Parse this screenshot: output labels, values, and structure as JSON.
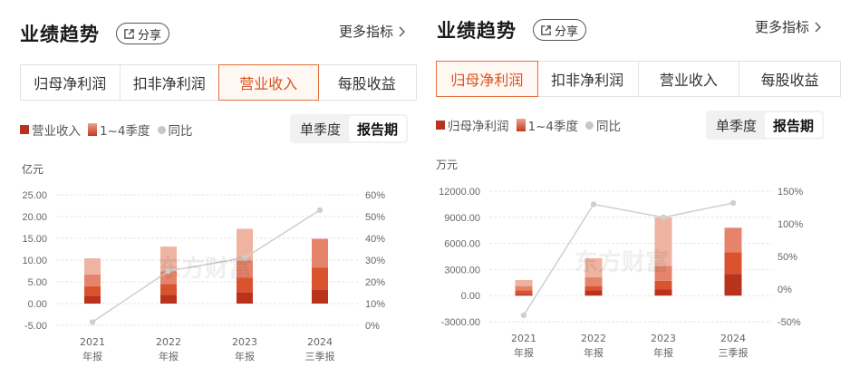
{
  "panels": [
    {
      "title": "业绩趋势",
      "share_label": "分享",
      "more_label": "更多指标",
      "tabs": [
        {
          "label": "归母净利润",
          "active": false
        },
        {
          "label": "扣非净利润",
          "active": false
        },
        {
          "label": "营业收入",
          "active": true
        },
        {
          "label": "每股收益",
          "active": false
        }
      ],
      "legend": {
        "series": "营业收入",
        "quarters": "1~4季度",
        "yoy": "同比"
      },
      "period_buttons": [
        {
          "label": "单季度",
          "active": false
        },
        {
          "label": "报告期",
          "active": true
        }
      ],
      "unit": "亿元",
      "watermark": "东方财富"
    },
    {
      "title": "业绩趋势",
      "more_label": "更多指标",
      "tabs": [
        {
          "label": "归母净利润",
          "active": true
        },
        {
          "label": "扣非净利润",
          "active": false
        },
        {
          "label": "营业收入",
          "active": false
        },
        {
          "label": "每股收益",
          "active": false
        }
      ],
      "legend": {
        "series": "归母净利润",
        "quarters": "1~4季度",
        "yoy": "同比"
      },
      "period_buttons": [
        {
          "label": "单季度",
          "active": false
        },
        {
          "label": "报告期",
          "active": true
        }
      ],
      "unit": "万元",
      "watermark": "东方财富"
    }
  ],
  "colors": {
    "accent": "#e3713a",
    "q1": "#b8321c",
    "q2": "#d9532f",
    "q3": "#e5846a",
    "q4": "#eeb3a1",
    "line": "#cfcfcf",
    "legend_series": "#b8321c"
  },
  "chart_data": [
    {
      "type": "bar",
      "stacked": true,
      "unit": "亿元",
      "categories": [
        [
          "2021",
          "年报"
        ],
        [
          "2022",
          "年报"
        ],
        [
          "2023",
          "年报"
        ],
        [
          "2024",
          "三季报"
        ]
      ],
      "series": [
        {
          "name": "Q1",
          "values": [
            1.8,
            2.0,
            2.5,
            3.2
          ]
        },
        {
          "name": "Q2",
          "values": [
            2.2,
            2.5,
            3.5,
            5.1
          ]
        },
        {
          "name": "Q3",
          "values": [
            2.7,
            2.9,
            3.9,
            6.6
          ]
        },
        {
          "name": "Q4",
          "values": [
            3.7,
            5.7,
            7.3,
            0
          ]
        }
      ],
      "yoy": {
        "name": "同比",
        "values": [
          1.5,
          25.0,
          31.0,
          53.0
        ]
      },
      "ylim": [
        -5,
        25
      ],
      "yticks": [
        "25.00",
        "20.00",
        "15.00",
        "10.00",
        "5.00",
        "0.00",
        "-5.00"
      ],
      "y2lim": [
        0,
        60
      ],
      "y2ticks": [
        "60%",
        "50%",
        "40%",
        "30%",
        "20%",
        "10%",
        "0%"
      ],
      "grid": true
    },
    {
      "type": "bar",
      "stacked": true,
      "unit": "万元",
      "categories": [
        [
          "2021",
          "年报"
        ],
        [
          "2022",
          "年报"
        ],
        [
          "2023",
          "年报"
        ],
        [
          "2024",
          "三季报"
        ]
      ],
      "series": [
        {
          "name": "Q1",
          "values": [
            200,
            600,
            700,
            2500
          ]
        },
        {
          "name": "Q2",
          "values": [
            400,
            500,
            1000,
            2500
          ]
        },
        {
          "name": "Q3",
          "values": [
            500,
            1000,
            1700,
            2800
          ]
        },
        {
          "name": "Q4",
          "values": [
            700,
            2200,
            5600,
            0
          ]
        }
      ],
      "yoy": {
        "name": "同比",
        "values": [
          -40,
          130,
          110,
          132
        ]
      },
      "ylim": [
        -3000,
        12000
      ],
      "yticks": [
        "12000.00",
        "9000.00",
        "6000.00",
        "3000.00",
        "0.00",
        "-3000.00"
      ],
      "y2lim": [
        -50,
        150
      ],
      "y2ticks": [
        "150%",
        "100%",
        "50%",
        "0%",
        "-50%"
      ],
      "grid": true
    }
  ]
}
